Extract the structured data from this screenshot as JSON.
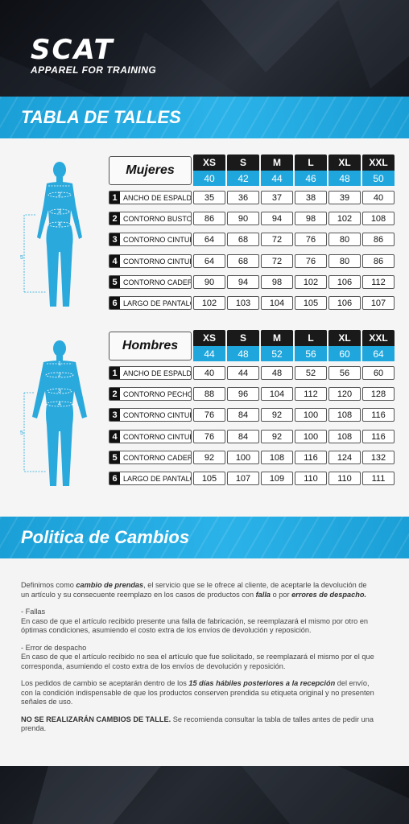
{
  "brand": {
    "name": "SCAT",
    "tagline": "APPAREL FOR TRAINING"
  },
  "sections": {
    "size_table_title": "TABLA DE TALLES",
    "policy_title": "Politica de Cambios"
  },
  "women": {
    "label": "Mujeres",
    "sizes": [
      "XS",
      "S",
      "M",
      "L",
      "XL",
      "XXL"
    ],
    "size_numbers": [
      "40",
      "42",
      "44",
      "46",
      "48",
      "50"
    ],
    "rows": [
      {
        "idx": "1",
        "label": "ANCHO DE ESPALDA",
        "values": [
          "35",
          "36",
          "37",
          "38",
          "39",
          "40"
        ]
      },
      {
        "idx": "2",
        "label": "CONTORNO BUSTO",
        "values": [
          "86",
          "90",
          "94",
          "98",
          "102",
          "108"
        ]
      },
      {
        "idx": "3",
        "label": "CONTORNO CINTURA",
        "values": [
          "64",
          "68",
          "72",
          "76",
          "80",
          "86"
        ]
      },
      {
        "idx": "4",
        "label": "CONTORNO CINTURA",
        "values": [
          "64",
          "68",
          "72",
          "76",
          "80",
          "86"
        ]
      },
      {
        "idx": "5",
        "label": "CONTORNO CADERA",
        "values": [
          "90",
          "94",
          "98",
          "102",
          "106",
          "112"
        ]
      },
      {
        "idx": "6",
        "label": "LARGO DE PANTALÓN",
        "values": [
          "102",
          "103",
          "104",
          "105",
          "106",
          "107"
        ]
      }
    ]
  },
  "men": {
    "label": "Hombres",
    "sizes": [
      "XS",
      "S",
      "M",
      "L",
      "XL",
      "XXL"
    ],
    "size_numbers": [
      "44",
      "48",
      "52",
      "56",
      "60",
      "64"
    ],
    "rows": [
      {
        "idx": "1",
        "label": "ANCHO DE ESPALDA",
        "values": [
          "40",
          "44",
          "48",
          "52",
          "56",
          "60"
        ]
      },
      {
        "idx": "2",
        "label": "CONTORNO PECHO",
        "values": [
          "88",
          "96",
          "104",
          "112",
          "120",
          "128"
        ]
      },
      {
        "idx": "3",
        "label": "CONTORNO CINTURA",
        "values": [
          "76",
          "84",
          "92",
          "100",
          "108",
          "116"
        ]
      },
      {
        "idx": "4",
        "label": "CONTORNO CINTURA",
        "values": [
          "76",
          "84",
          "92",
          "100",
          "108",
          "116"
        ]
      },
      {
        "idx": "5",
        "label": "CONTORNO CADERA",
        "values": [
          "92",
          "100",
          "108",
          "116",
          "124",
          "132"
        ]
      },
      {
        "idx": "6",
        "label": "LARGO DE PANTALÓN",
        "values": [
          "105",
          "107",
          "109",
          "110",
          "110",
          "111"
        ]
      }
    ]
  },
  "figure_marks": [
    "1",
    "2",
    "3",
    "4",
    "5"
  ],
  "policy": {
    "p1_a": "Definimos como ",
    "p1_em1": "cambio de prendas",
    "p1_b": ", el servicio que se le ofrece al cliente, de aceptarle la devolución de un artículo y su consecuente reemplazo en los casos de productos con ",
    "p1_em2": "falla",
    "p1_c": " o por ",
    "p1_em3": "errores de despacho.",
    "p2_title": "- Fallas",
    "p2_body": "En caso de que el artículo recibido presente una falla de fabricación, se reemplazará el mismo por otro en óptimas condiciones, asumiendo el costo extra de los envíos de devolución y reposición.",
    "p3_title": "- Error de despacho",
    "p3_body": "En caso de que el artículo recibido no sea el artículo que fue solicitado, se reemplazará el mismo por el que corresponda, asumiendo el costo extra de los envíos de devolución y reposición.",
    "p4_a": "Los pedidos de cambio se aceptarán dentro de los ",
    "p4_em": "15 días hábiles posteriores a la recepción",
    "p4_b": " del envío, con la condición indispensable de que los productos conserven prendida su etiqueta original y no presenten señales de uso.",
    "p5_caps": "NO SE REALIZARÁN CAMBIOS DE TALLE.",
    "p5_b": " Se recomienda consultar la tabla de talles antes de pedir una prenda."
  },
  "colors": {
    "accent": "#1fa6dc",
    "dark": "#1a1a1a"
  }
}
